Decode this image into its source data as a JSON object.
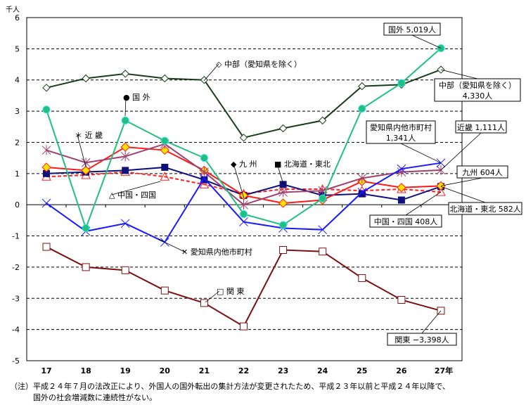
{
  "chart_data": {
    "type": "line",
    "ylabel": "千人",
    "ylim": [
      -5,
      6
    ],
    "yticks": [
      -5,
      -4,
      -3,
      -2,
      -1,
      0,
      1,
      2,
      3,
      4,
      5,
      6
    ],
    "categories": [
      "17",
      "18",
      "19",
      "20",
      "21",
      "22",
      "23",
      "24",
      "25",
      "26",
      "27年"
    ],
    "grid": "horizontal dashed",
    "series": [
      {
        "name": "中部（愛知県を除く）",
        "color": "#1a3d1a",
        "marker": "diamond-open",
        "values": [
          3.75,
          4.05,
          4.2,
          4.05,
          4.0,
          2.15,
          2.45,
          2.7,
          3.8,
          3.85,
          4.33
        ],
        "legend": "◇ 中部（愛知県を除く）",
        "end_label": [
          "中部（愛知県を除く）",
          "4,330人"
        ]
      },
      {
        "name": "国外",
        "color": "#22c080",
        "marker": "circle",
        "values": [
          3.05,
          -0.75,
          2.7,
          2.05,
          1.5,
          -0.3,
          -0.65,
          0.2,
          3.08,
          3.9,
          5.019
        ],
        "legend": "● 国 外",
        "end_label": [
          "国外 5,019人"
        ]
      },
      {
        "name": "愛知県内他市町村",
        "color": "#1a1aff",
        "marker": "x",
        "values": [
          0.05,
          -0.85,
          -0.6,
          -1.2,
          0.85,
          -0.55,
          -0.75,
          -0.8,
          0.4,
          1.15,
          1.341
        ],
        "legend": "✕ 愛知県内他市町村",
        "end_label": [
          "愛知県内他市町村",
          "1,341人"
        ]
      },
      {
        "name": "近畿",
        "color": "#a04070",
        "marker": "asterisk",
        "values": [
          1.75,
          1.35,
          1.55,
          1.95,
          1.05,
          0.0,
          0.4,
          0.45,
          0.85,
          1.05,
          1.111
        ],
        "legend": "＊ 近 畿",
        "end_label": [
          "近畿 1,111人"
        ]
      },
      {
        "name": "九州",
        "color": "#ff1a1a",
        "marker": "diamond-yellow",
        "values": [
          1.2,
          1.1,
          1.85,
          1.75,
          1.1,
          0.3,
          0.05,
          0.15,
          0.75,
          0.55,
          0.604
        ],
        "legend": "◆ 九 州",
        "end_label": [
          "九州 604人"
        ]
      },
      {
        "name": "北海道・東北",
        "color": "#10107a",
        "marker": "square",
        "values": [
          1.0,
          1.05,
          1.1,
          1.2,
          0.8,
          0.3,
          0.65,
          0.3,
          0.35,
          0.15,
          0.582
        ],
        "legend": "■ 北海道・東北",
        "end_label": [
          "北海道・東北 582人"
        ]
      },
      {
        "name": "中国・四国",
        "color": "#ff2020",
        "marker": "triangle-open",
        "dashed": true,
        "values": [
          0.9,
          0.95,
          1.05,
          0.9,
          0.65,
          0.35,
          0.5,
          0.5,
          0.45,
          0.5,
          0.408
        ],
        "legend": "△ 中国・四国",
        "end_label": [
          "中国・四国 408人"
        ]
      },
      {
        "name": "関東",
        "color": "#7a1010",
        "marker": "square-open",
        "values": [
          -1.35,
          -2.0,
          -2.1,
          -2.75,
          -3.15,
          -3.9,
          -1.45,
          -1.5,
          -2.35,
          -3.05,
          -3.398
        ],
        "legend": "□ 関 東",
        "end_label": [
          "関東 −3,398人"
        ]
      }
    ]
  },
  "note": {
    "line1": "（注）平成２４年７月の法改正により、外国人の国外転出の集計方法が変更されたため、平成２３年以前と平成２４年以降で、",
    "line2": "　　　国外の社会増減数に連続性がない。"
  }
}
